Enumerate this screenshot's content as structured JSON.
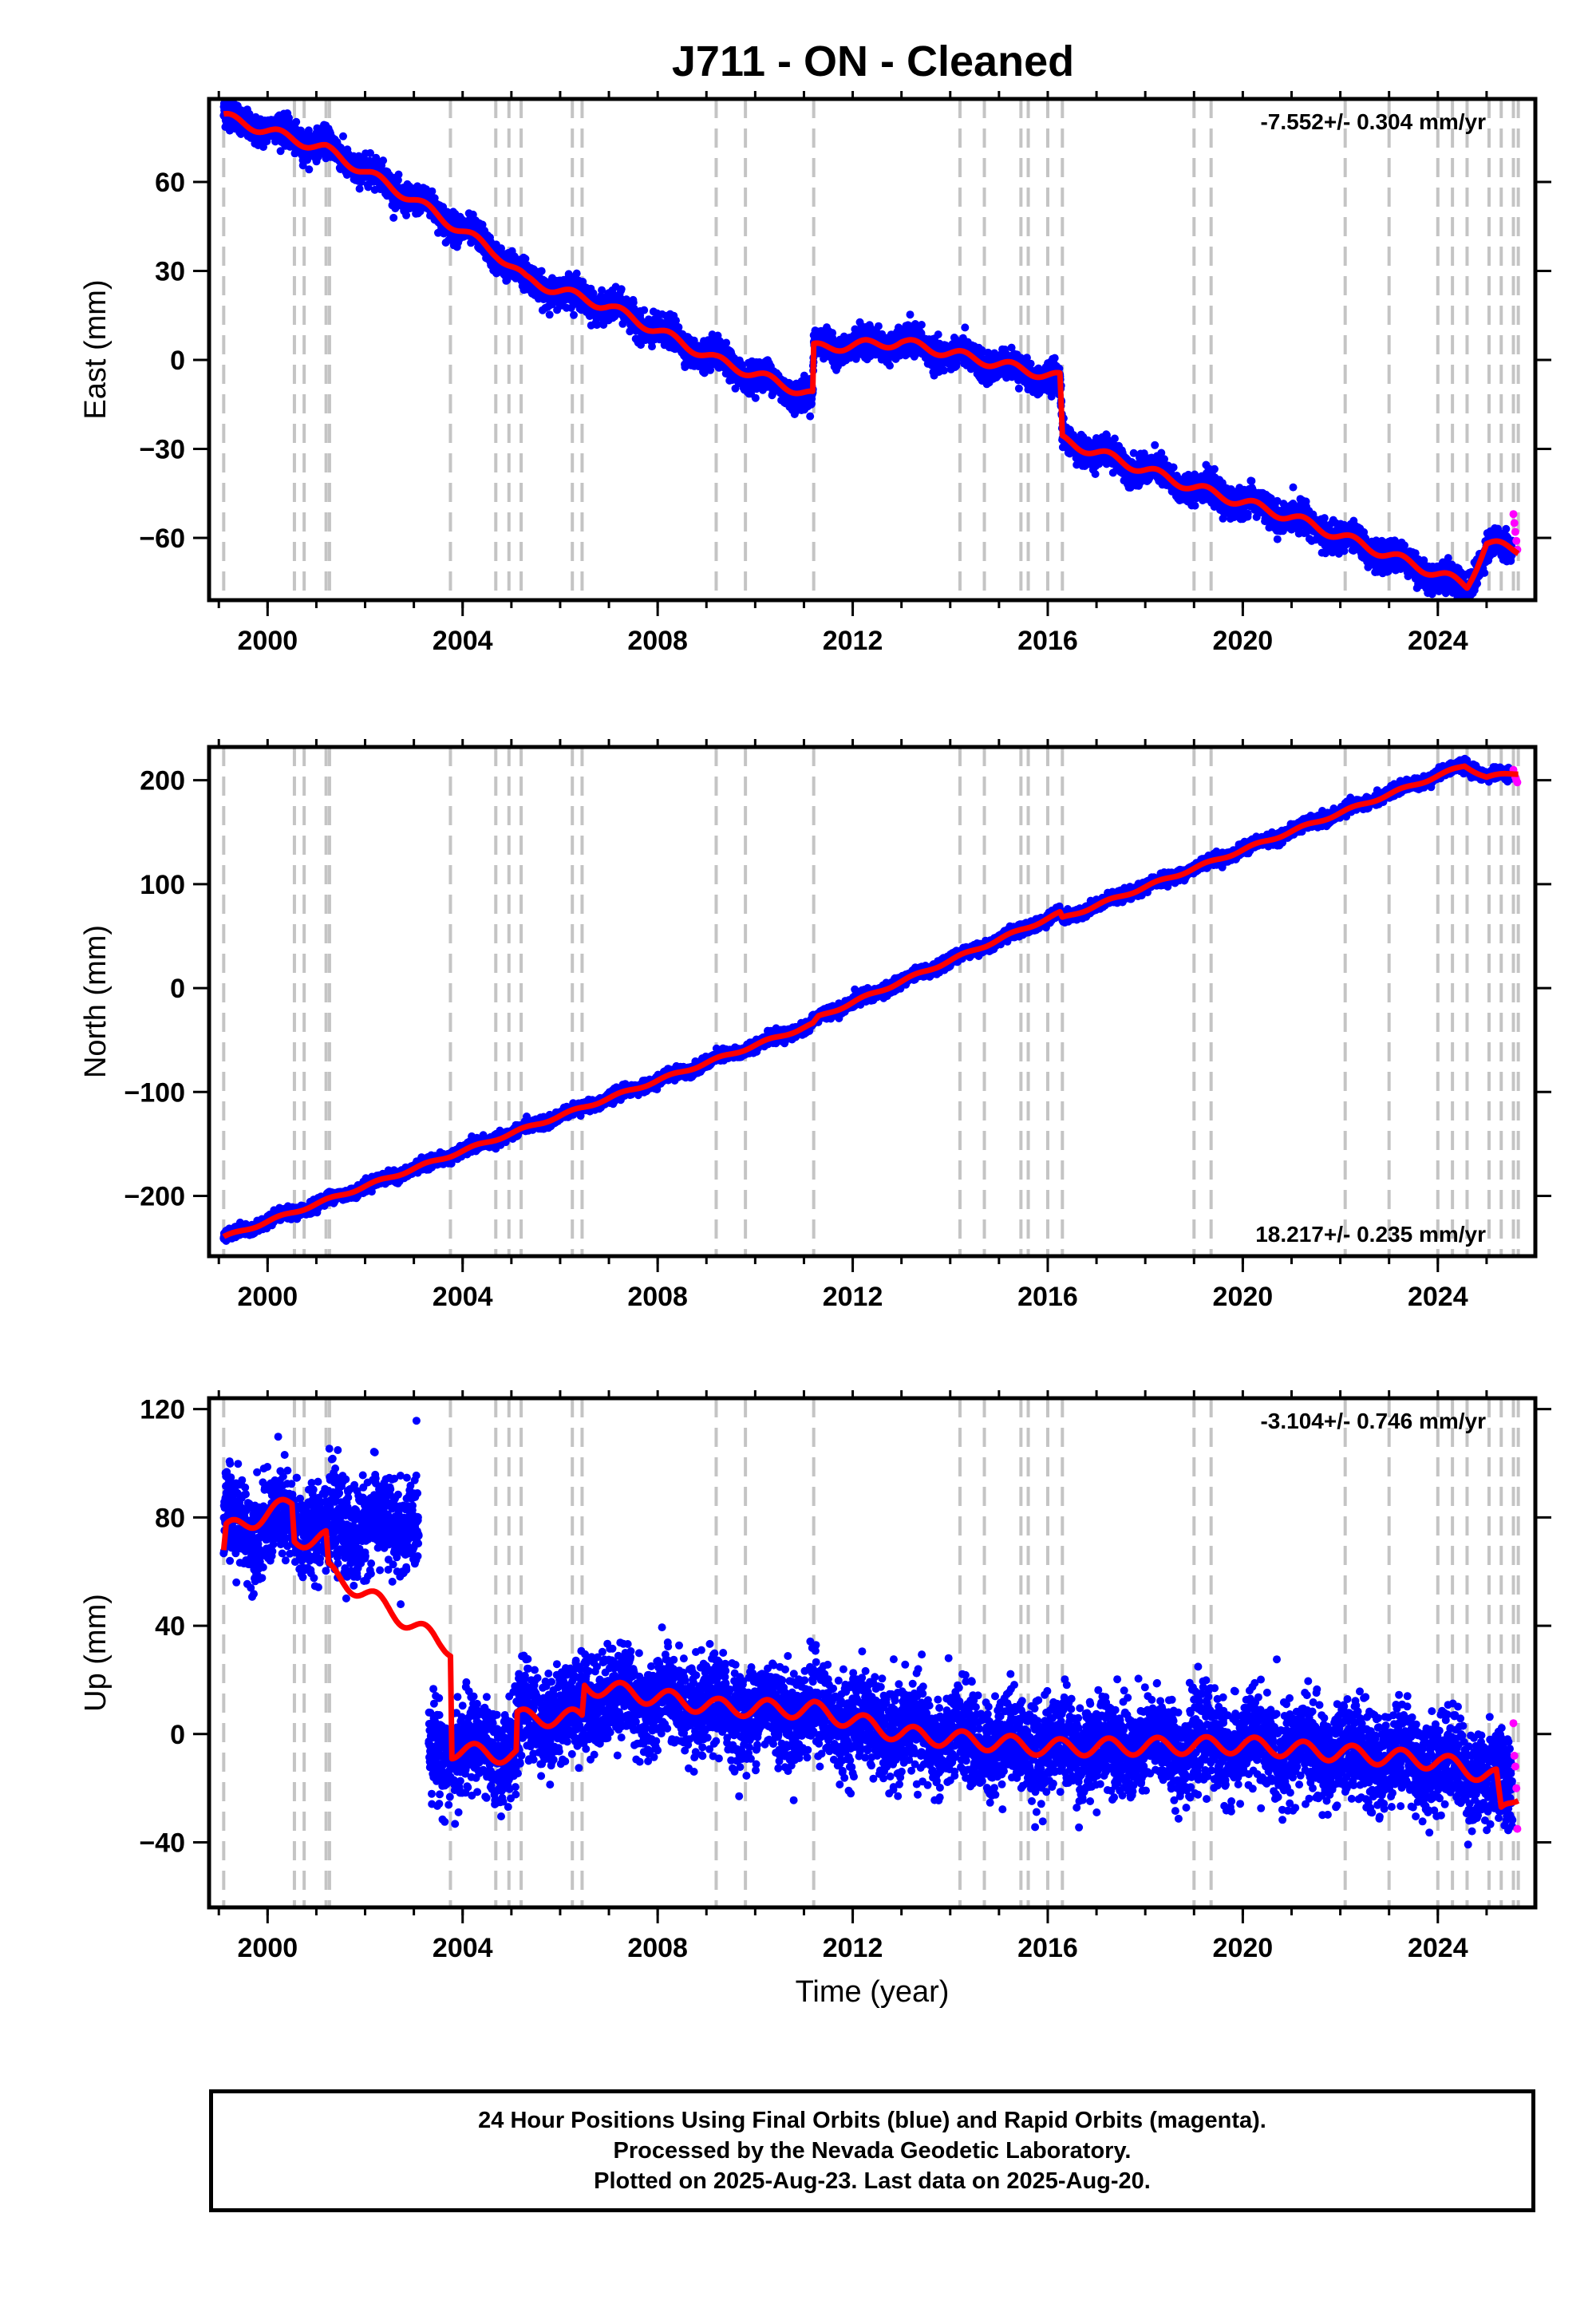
{
  "figure": {
    "title": "J711  - ON - Cleaned",
    "colors": {
      "final": "#0000ff",
      "rapid": "#ff00ff",
      "model": "#ff0000",
      "steps": "#c4c4c4"
    },
    "footer": [
      "24 Hour Positions Using Final Orbits (blue) and Rapid Orbits (magenta).",
      "Processed by the Nevada Geodetic Laboratory.",
      "Plotted on 2025-Aug-23. Last data on 2025-Aug-20."
    ]
  },
  "chart_data": [
    {
      "type": "scatter",
      "component": "east",
      "ylabel": "East (mm)",
      "xlabel": "",
      "xlim": [
        1998.8,
        2026.0
      ],
      "ylim": [
        -81,
        88
      ],
      "xticks": [
        2000,
        2004,
        2008,
        2012,
        2016,
        2020,
        2024
      ],
      "yticks": [
        -60,
        -30,
        0,
        30,
        60
      ],
      "rate_label": "-7.552+/- 0.304 mm/yr",
      "rate_position": "top-right",
      "trend_knots": [
        [
          1999.1,
          82
        ],
        [
          2001.2,
          72
        ],
        [
          2003.0,
          54
        ],
        [
          2003.75,
          47
        ],
        [
          2004.7,
          36
        ],
        [
          2005.3,
          27
        ],
        [
          2007.0,
          18
        ],
        [
          2009.2,
          0
        ],
        [
          2011.18,
          -13
        ],
        [
          2011.2,
          4
        ],
        [
          2013.0,
          6
        ],
        [
          2016.25,
          -7
        ],
        [
          2016.3,
          -27
        ],
        [
          2019.0,
          -43
        ],
        [
          2021.0,
          -53
        ],
        [
          2024.6,
          -77
        ],
        [
          2025.0,
          -63
        ],
        [
          2025.65,
          -64
        ]
      ],
      "model_knots": [
        [
          1999.1,
          82
        ],
        [
          2001.2,
          71
        ],
        [
          2003.0,
          54
        ],
        [
          2003.75,
          46
        ],
        [
          2004.7,
          36
        ],
        [
          2005.3,
          27
        ],
        [
          2007.0,
          18
        ],
        [
          2009.2,
          0
        ],
        [
          2011.18,
          -12
        ],
        [
          2011.2,
          4
        ],
        [
          2013.0,
          6
        ],
        [
          2016.25,
          -6
        ],
        [
          2016.3,
          -27
        ],
        [
          2019.0,
          -43
        ],
        [
          2021.0,
          -53
        ],
        [
          2024.6,
          -76
        ],
        [
          2025.0,
          -62
        ],
        [
          2025.65,
          -64
        ]
      ],
      "noise_sd": 2.3,
      "seasonal_amp": 2.0,
      "rapid_values": [
        -52,
        -55,
        -58,
        -61,
        -64
      ]
    },
    {
      "type": "scatter",
      "component": "north",
      "ylabel": "North (mm)",
      "xlabel": "",
      "xlim": [
        1998.8,
        2026.0
      ],
      "ylim": [
        -258,
        232
      ],
      "xticks": [
        2000,
        2004,
        2008,
        2012,
        2016,
        2020,
        2024
      ],
      "yticks": [
        -200,
        -100,
        0,
        100,
        200
      ],
      "rate_label": "18.217+/- 0.235 mm/yr",
      "rate_position": "bottom-right",
      "trend_knots": [
        [
          1999.1,
          -240
        ],
        [
          2011.18,
          -35
        ],
        [
          2011.3,
          -28
        ],
        [
          2016.25,
          72
        ],
        [
          2016.3,
          67
        ],
        [
          2024.55,
          215
        ],
        [
          2025.0,
          204
        ],
        [
          2025.65,
          207
        ]
      ],
      "model_knots": [
        [
          1999.1,
          -240
        ],
        [
          2011.18,
          -35
        ],
        [
          2011.3,
          -28
        ],
        [
          2016.25,
          72
        ],
        [
          2016.3,
          67
        ],
        [
          2024.55,
          214
        ],
        [
          2025.0,
          203
        ],
        [
          2025.65,
          207
        ]
      ],
      "noise_sd": 2.6,
      "seasonal_amp": 1.8,
      "rapid_values": [
        210,
        206,
        203,
        200,
        198
      ]
    },
    {
      "type": "scatter",
      "component": "up",
      "ylabel": "Up (mm)",
      "xlabel": "Time (year)",
      "xlim": [
        1998.8,
        2026.0
      ],
      "ylim": [
        -64,
        124
      ],
      "xticks": [
        2000,
        2004,
        2008,
        2012,
        2016,
        2020,
        2024
      ],
      "yticks": [
        -40,
        0,
        40,
        80,
        120
      ],
      "rate_label": "-3.104+/- 0.746 mm/yr",
      "rate_position": "top-right",
      "data_gap": [
        2003.1,
        2003.3
      ],
      "trend_knots": [
        [
          1999.1,
          77
        ],
        [
          2000.5,
          78
        ],
        [
          2001.2,
          76
        ],
        [
          2003.1,
          78
        ],
        [
          2003.3,
          -6
        ],
        [
          2005.1,
          -6
        ],
        [
          2005.2,
          6
        ],
        [
          2006.45,
          8
        ],
        [
          2006.5,
          15
        ],
        [
          2009.2,
          9
        ],
        [
          2011.2,
          8
        ],
        [
          2013.0,
          0
        ],
        [
          2016.0,
          -5
        ],
        [
          2020.0,
          -4
        ],
        [
          2024.0,
          -10
        ],
        [
          2025.2,
          -16
        ],
        [
          2025.65,
          -22
        ]
      ],
      "model_knots": [
        [
          1999.1,
          66
        ],
        [
          1999.15,
          75
        ],
        [
          2000.5,
          85
        ],
        [
          2000.55,
          72
        ],
        [
          2001.2,
          72
        ],
        [
          2001.25,
          60
        ],
        [
          2002.0,
          52
        ],
        [
          2002.5,
          46
        ],
        [
          2003.0,
          40
        ],
        [
          2003.5,
          34
        ],
        [
          2003.75,
          32
        ],
        [
          2003.78,
          -6
        ],
        [
          2005.1,
          -8
        ],
        [
          2005.12,
          6
        ],
        [
          2006.45,
          6
        ],
        [
          2006.5,
          18
        ],
        [
          2009.2,
          10
        ],
        [
          2011.2,
          9
        ],
        [
          2013.0,
          0
        ],
        [
          2016.0,
          -5
        ],
        [
          2020.0,
          -4
        ],
        [
          2024.0,
          -10
        ],
        [
          2025.2,
          -16
        ],
        [
          2025.3,
          -30
        ],
        [
          2025.65,
          -22
        ]
      ],
      "noise_sd": 8.5,
      "seasonal_amp": 4.0,
      "rapid_values": [
        4,
        -8,
        -12,
        -20,
        -35
      ]
    }
  ],
  "step_years": [
    1999.1,
    2000.55,
    2000.75,
    2001.2,
    2001.27,
    2003.75,
    2004.68,
    2004.95,
    2005.2,
    2006.25,
    2006.45,
    2009.2,
    2009.8,
    2011.2,
    2014.2,
    2014.7,
    2015.45,
    2015.6,
    2016.0,
    2016.3,
    2019.0,
    2019.35,
    2022.1,
    2023.0,
    2024.0,
    2024.3,
    2024.6,
    2025.05,
    2025.3,
    2025.55,
    2025.65
  ]
}
